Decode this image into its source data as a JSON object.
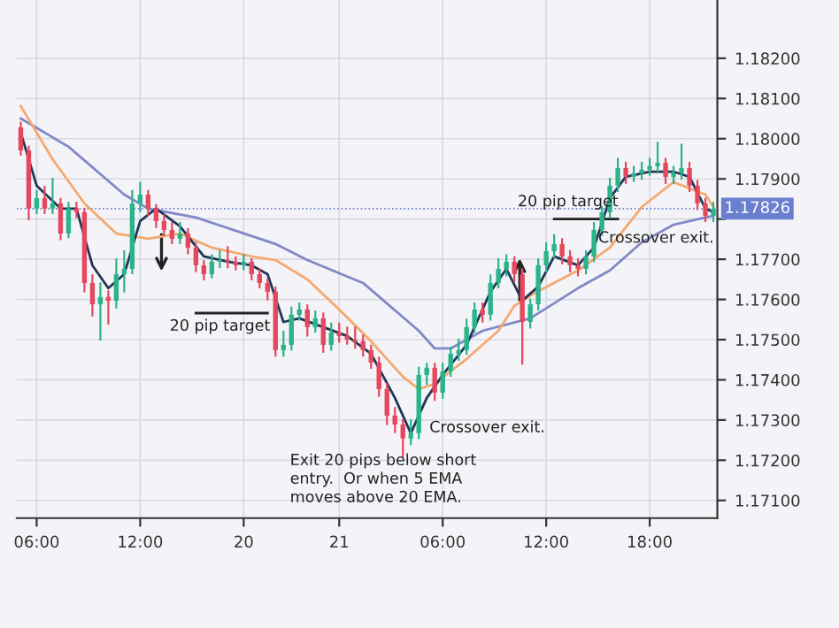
{
  "chart_data": {
    "type": "candlestick",
    "categories": [
      null,
      null,
      "06:00",
      null,
      null,
      null,
      null,
      null,
      null,
      null,
      null,
      null,
      null,
      null,
      null,
      "12:00",
      null,
      null,
      null,
      null,
      null,
      null,
      null,
      null,
      null,
      null,
      null,
      null,
      "20",
      null,
      null,
      null,
      null,
      null,
      null,
      null,
      null,
      null,
      null,
      null,
      "21",
      null,
      null,
      null,
      null,
      null,
      null,
      null,
      null,
      null,
      null,
      null,
      null,
      "06:00",
      null,
      null,
      null,
      null,
      null,
      null,
      null,
      null,
      null,
      null,
      null,
      null,
      "12:00",
      null,
      null,
      null,
      null,
      null,
      null,
      null,
      null,
      null,
      null,
      null,
      null,
      "18:00",
      null,
      null,
      null,
      null,
      null,
      null,
      null,
      null
    ],
    "ohlc": [
      [
        1.18028,
        1.1804,
        1.1796,
        1.17971
      ],
      [
        1.17971,
        1.1798,
        1.178,
        1.17826
      ],
      [
        1.17826,
        1.1787,
        1.17815,
        1.17852
      ],
      [
        1.17852,
        1.1788,
        1.17815,
        1.17826
      ],
      [
        1.17826,
        1.179,
        1.17815,
        1.17839
      ],
      [
        1.17839,
        1.1785,
        1.1775,
        1.17764
      ],
      [
        1.17764,
        1.1784,
        1.17755,
        1.17826
      ],
      [
        1.17826,
        1.1784,
        1.17805,
        1.17817
      ],
      [
        1.17817,
        1.17825,
        1.1762,
        1.17641
      ],
      [
        1.17641,
        1.1766,
        1.1756,
        1.17588
      ],
      [
        1.17588,
        1.1764,
        1.175,
        1.17606
      ],
      [
        1.17606,
        1.1762,
        1.1754,
        1.17597
      ],
      [
        1.17597,
        1.177,
        1.1758,
        1.17663
      ],
      [
        1.17663,
        1.1772,
        1.1762,
        1.17676
      ],
      [
        1.17676,
        1.1787,
        1.17665,
        1.17839
      ],
      [
        1.17839,
        1.1789,
        1.1782,
        1.17861
      ],
      [
        1.17861,
        1.1787,
        1.1781,
        1.17826
      ],
      [
        1.17826,
        1.17835,
        1.1778,
        1.17795
      ],
      [
        1.17795,
        1.1781,
        1.1776,
        1.17773
      ],
      [
        1.17773,
        1.1779,
        1.1774,
        1.17751
      ],
      [
        1.17751,
        1.1779,
        1.1774,
        1.17764
      ],
      [
        1.17764,
        1.17775,
        1.17715,
        1.17729
      ],
      [
        1.17729,
        1.1774,
        1.1767,
        1.17685
      ],
      [
        1.17685,
        1.17695,
        1.1765,
        1.17663
      ],
      [
        1.17663,
        1.1771,
        1.17655,
        1.17694
      ],
      [
        1.17694,
        1.1772,
        1.1768,
        1.17698
      ],
      [
        1.17698,
        1.1773,
        1.1768,
        1.17694
      ],
      [
        1.17694,
        1.17705,
        1.17675,
        1.17685
      ],
      [
        1.17685,
        1.1771,
        1.17675,
        1.17694
      ],
      [
        1.17694,
        1.177,
        1.1765,
        1.17663
      ],
      [
        1.17663,
        1.17675,
        1.1763,
        1.17641
      ],
      [
        1.17641,
        1.1765,
        1.176,
        1.17619
      ],
      [
        1.17619,
        1.1763,
        1.1746,
        1.17474
      ],
      [
        1.17474,
        1.1752,
        1.1746,
        1.17487
      ],
      [
        1.17487,
        1.1758,
        1.17475,
        1.17562
      ],
      [
        1.17562,
        1.1759,
        1.1755,
        1.17575
      ],
      [
        1.17575,
        1.17585,
        1.1751,
        1.17531
      ],
      [
        1.17531,
        1.1757,
        1.1752,
        1.17553
      ],
      [
        1.17553,
        1.17565,
        1.1747,
        1.17487
      ],
      [
        1.17487,
        1.1754,
        1.17475,
        1.17518
      ],
      [
        1.17518,
        1.1754,
        1.17495,
        1.17509
      ],
      [
        1.17509,
        1.1753,
        1.1749,
        1.175
      ],
      [
        1.175,
        1.1753,
        1.1748,
        1.17496
      ],
      [
        1.17496,
        1.1751,
        1.1746,
        1.17474
      ],
      [
        1.17474,
        1.17485,
        1.1743,
        1.17443
      ],
      [
        1.17443,
        1.17455,
        1.1736,
        1.17377
      ],
      [
        1.17377,
        1.1739,
        1.1729,
        1.17311
      ],
      [
        1.17311,
        1.1733,
        1.1727,
        1.17289
      ],
      [
        1.17289,
        1.173,
        1.1721,
        1.17254
      ],
      [
        1.17254,
        1.173,
        1.1724,
        1.17267
      ],
      [
        1.17267,
        1.1743,
        1.17255,
        1.17412
      ],
      [
        1.17412,
        1.1744,
        1.1739,
        1.1743
      ],
      [
        1.1743,
        1.1744,
        1.1735,
        1.17368
      ],
      [
        1.17368,
        1.1744,
        1.17355,
        1.17421
      ],
      [
        1.17421,
        1.1748,
        1.1741,
        1.17465
      ],
      [
        1.17465,
        1.175,
        1.1745,
        1.17474
      ],
      [
        1.17474,
        1.1755,
        1.17465,
        1.17531
      ],
      [
        1.17531,
        1.1759,
        1.1752,
        1.17575
      ],
      [
        1.17575,
        1.1759,
        1.17545,
        1.17562
      ],
      [
        1.17562,
        1.1766,
        1.1755,
        1.17641
      ],
      [
        1.17641,
        1.177,
        1.1763,
        1.17676
      ],
      [
        1.17676,
        1.1771,
        1.1766,
        1.17694
      ],
      [
        1.17694,
        1.17705,
        1.17645,
        1.17663
      ],
      [
        1.17663,
        1.17675,
        1.1744,
        1.17544
      ],
      [
        1.17544,
        1.176,
        1.1753,
        1.17588
      ],
      [
        1.17588,
        1.177,
        1.17575,
        1.17685
      ],
      [
        1.17685,
        1.1774,
        1.1767,
        1.1772
      ],
      [
        1.1772,
        1.1776,
        1.17705,
        1.17738
      ],
      [
        1.17738,
        1.1775,
        1.1769,
        1.17707
      ],
      [
        1.17707,
        1.1772,
        1.1767,
        1.17685
      ],
      [
        1.17685,
        1.177,
        1.1766,
        1.17676
      ],
      [
        1.17676,
        1.1772,
        1.17665,
        1.17707
      ],
      [
        1.17707,
        1.1779,
        1.17695,
        1.17773
      ],
      [
        1.17773,
        1.1783,
        1.1776,
        1.17817
      ],
      [
        1.17817,
        1.179,
        1.17805,
        1.17883
      ],
      [
        1.17883,
        1.1795,
        1.1787,
        1.17927
      ],
      [
        1.17927,
        1.1794,
        1.1789,
        1.17905
      ],
      [
        1.17905,
        1.1793,
        1.17895,
        1.17914
      ],
      [
        1.17914,
        1.1794,
        1.179,
        1.17923
      ],
      [
        1.17923,
        1.1795,
        1.1791,
        1.17932
      ],
      [
        1.17932,
        1.1799,
        1.1792,
        1.1794
      ],
      [
        1.1794,
        1.1795,
        1.1789,
        1.17905
      ],
      [
        1.17905,
        1.1793,
        1.1789,
        1.17914
      ],
      [
        1.17914,
        1.17985,
        1.179,
        1.17927
      ],
      [
        1.17927,
        1.1794,
        1.1787,
        1.17883
      ],
      [
        1.17883,
        1.17895,
        1.17825,
        1.17839
      ],
      [
        1.17839,
        1.1785,
        1.17795,
        1.17808
      ],
      [
        1.17808,
        1.1784,
        1.17795,
        1.17826
      ]
    ],
    "colors": [
      "#e5485e",
      "#e5485e",
      "#2bb38a",
      "#e5485e",
      "#2bb38a",
      "#e5485e",
      "#2bb38a",
      "#e5485e",
      "#e5485e",
      "#e5485e",
      "#2bb38a",
      "#e5485e",
      "#2bb38a",
      "#2bb38a",
      "#2bb38a",
      "#2bb38a",
      "#e5485e",
      "#e5485e",
      "#e5485e",
      "#e5485e",
      "#2bb38a",
      "#e5485e",
      "#e5485e",
      "#e5485e",
      "#2bb38a",
      "#2bb38a",
      "#e5485e",
      "#e5485e",
      "#2bb38a",
      "#e5485e",
      "#e5485e",
      "#e5485e",
      "#e5485e",
      "#2bb38a",
      "#2bb38a",
      "#2bb38a",
      "#e5485e",
      "#2bb38a",
      "#e5485e",
      "#2bb38a",
      "#e5485e",
      "#e5485e",
      "#e5485e",
      "#e5485e",
      "#e5485e",
      "#e5485e",
      "#e5485e",
      "#e5485e",
      "#e5485e",
      "#2bb38a",
      "#2bb38a",
      "#2bb38a",
      "#e5485e",
      "#2bb38a",
      "#2bb38a",
      "#2bb38a",
      "#2bb38a",
      "#2bb38a",
      "#e5485e",
      "#2bb38a",
      "#2bb38a",
      "#2bb38a",
      "#e5485e",
      "#e5485e",
      "#2bb38a",
      "#2bb38a",
      "#2bb38a",
      "#2bb38a",
      "#e5485e",
      "#e5485e",
      "#e5485e",
      "#2bb38a",
      "#2bb38a",
      "#2bb38a",
      "#2bb38a",
      "#2bb38a",
      "#e5485e",
      "#2bb38a",
      "#2bb38a",
      "#2bb38a",
      "#2bb38a",
      "#e5485e",
      "#2bb38a",
      "#2bb38a",
      "#e5485e",
      "#e5485e",
      "#e5485e",
      "#2bb38a"
    ],
    "series": [
      {
        "type": "line",
        "color": "#8088c8",
        "values": [
          1.1805,
          null,
          null,
          null,
          null,
          null,
          1.1798,
          null,
          null,
          null,
          null,
          null,
          null,
          1.17861,
          null,
          null,
          1.17826,
          null,
          null,
          null,
          null,
          null,
          1.17804,
          null,
          null,
          null,
          null,
          null,
          null,
          null,
          null,
          null,
          1.17738,
          null,
          null,
          null,
          1.17698,
          null,
          null,
          null,
          null,
          null,
          null,
          1.17641,
          null,
          null,
          null,
          null,
          null,
          null,
          1.17522,
          null,
          1.17478,
          null,
          1.17478,
          null,
          null,
          null,
          1.17522,
          null,
          null,
          null,
          null,
          null,
          1.17553,
          null,
          null,
          null,
          null,
          null,
          1.17628,
          null,
          null,
          null,
          1.17672,
          null,
          null,
          null,
          1.17742,
          null,
          null,
          null,
          1.17786,
          null,
          null,
          null,
          1.17804,
          1.17808
        ]
      },
      {
        "type": "line",
        "color": "#f5a86e",
        "values": [
          1.18081,
          null,
          null,
          null,
          1.17949,
          null,
          null,
          null,
          1.17839,
          null,
          null,
          null,
          1.17764,
          null,
          null,
          null,
          1.17751,
          null,
          null,
          null,
          1.17764,
          null,
          null,
          null,
          1.17729,
          null,
          null,
          null,
          null,
          1.17707,
          null,
          null,
          1.17698,
          null,
          null,
          null,
          1.1765,
          null,
          null,
          null,
          1.17575,
          null,
          null,
          null,
          1.17496,
          null,
          null,
          null,
          1.17408,
          null,
          1.17377,
          null,
          1.1739,
          null,
          null,
          null,
          1.17452,
          null,
          null,
          null,
          1.17522,
          null,
          1.17584,
          null,
          1.1761,
          null,
          null,
          null,
          null,
          null,
          1.17672,
          null,
          null,
          null,
          1.17729,
          null,
          null,
          null,
          1.1783,
          null,
          null,
          null,
          1.17892,
          null,
          null,
          null,
          1.17861,
          1.1783
        ]
      },
      {
        "type": "line",
        "color": "#1f3557",
        "values": [
          1.18015,
          null,
          1.17883,
          null,
          null,
          1.17826,
          null,
          1.17826,
          null,
          1.17685,
          null,
          1.17628,
          null,
          1.17663,
          null,
          1.17795,
          null,
          1.17826,
          null,
          null,
          1.17782,
          null,
          null,
          1.17707,
          null,
          null,
          1.17694,
          null,
          null,
          1.17685,
          null,
          1.17663,
          null,
          1.17544,
          null,
          1.17553,
          null,
          null,
          1.17531,
          null,
          null,
          1.17509,
          null,
          null,
          1.17465,
          null,
          null,
          1.17355,
          null,
          1.17267,
          null,
          1.17355,
          null,
          1.17412,
          null,
          null,
          1.17487,
          null,
          null,
          1.17619,
          null,
          1.17676,
          null,
          1.17597,
          null,
          1.17632,
          null,
          1.17707,
          null,
          null,
          1.17685,
          null,
          1.17729,
          null,
          1.17852,
          null,
          1.17905,
          null,
          null,
          1.17918,
          null,
          null,
          1.17918,
          null,
          1.17905,
          null,
          1.17826,
          1.17817
        ]
      },
      {
        "type": "line",
        "color": "#222222",
        "values": [
          null,
          null,
          null,
          null,
          null,
          null,
          null,
          null,
          null,
          null,
          null,
          null,
          null,
          null,
          null,
          null,
          null,
          null,
          null,
          null,
          null,
          null,
          1.17566,
          null,
          null,
          null,
          null,
          null,
          null,
          null,
          null,
          1.17566,
          null,
          null,
          null,
          null,
          null,
          null,
          null,
          null,
          null,
          null,
          null,
          null,
          null,
          null,
          null,
          null,
          null,
          null,
          null,
          null,
          null,
          null,
          null,
          null,
          null,
          null,
          null,
          null,
          null,
          null,
          null,
          null,
          null,
          null,
          null,
          null,
          null,
          null,
          null,
          null,
          null,
          null,
          null,
          null,
          null,
          null,
          null,
          null,
          null,
          null,
          null,
          null,
          null,
          null,
          null,
          null
        ]
      },
      {
        "type": "line",
        "color": "#222222",
        "values": [
          null,
          null,
          null,
          null,
          null,
          null,
          null,
          null,
          null,
          null,
          null,
          null,
          null,
          null,
          null,
          null,
          null,
          null,
          null,
          null,
          null,
          null,
          null,
          null,
          null,
          null,
          null,
          null,
          null,
          null,
          null,
          null,
          null,
          null,
          null,
          null,
          null,
          null,
          null,
          null,
          null,
          null,
          null,
          null,
          null,
          null,
          null,
          null,
          null,
          null,
          null,
          null,
          null,
          null,
          null,
          null,
          null,
          null,
          null,
          null,
          null,
          null,
          null,
          null,
          null,
          null,
          null,
          1.178,
          null,
          null,
          null,
          null,
          null,
          null,
          null,
          1.178,
          null,
          null,
          null,
          null,
          null,
          null,
          null,
          null,
          null,
          null,
          null,
          null
        ]
      }
    ],
    "ylim": [
      1.17056,
      1.18345
    ],
    "yticks": [
      {
        "value": 1.171,
        "label": "1.17100"
      },
      {
        "value": 1.172,
        "label": "1.17200"
      },
      {
        "value": 1.173,
        "label": "1.17300"
      },
      {
        "value": 1.174,
        "label": "1.17400"
      },
      {
        "value": 1.175,
        "label": "1.17500"
      },
      {
        "value": 1.176,
        "label": "1.17600"
      },
      {
        "value": 1.177,
        "label": "1.17700"
      },
      {
        "value": 1.178,
        "label": null
      },
      {
        "value": 1.179,
        "label": "1.17900"
      },
      {
        "value": 1.18,
        "label": "1.18000"
      },
      {
        "value": 1.181,
        "label": "1.18100"
      },
      {
        "value": 1.182,
        "label": "1.18200"
      }
    ],
    "ref_lines": [
      {
        "axis": "y",
        "value": 1.17826,
        "label": "1.17826",
        "color": "#6b7fd0",
        "line_style": "dotted"
      }
    ],
    "annotations": [
      "20 pip target",
      "Exit 20 pips below short\nentry.  Or when 5 EMA\nmoves above 20 EMA.",
      "Crossover exit.",
      "20 pip target",
      "Crossover exit."
    ],
    "grid": true
  }
}
